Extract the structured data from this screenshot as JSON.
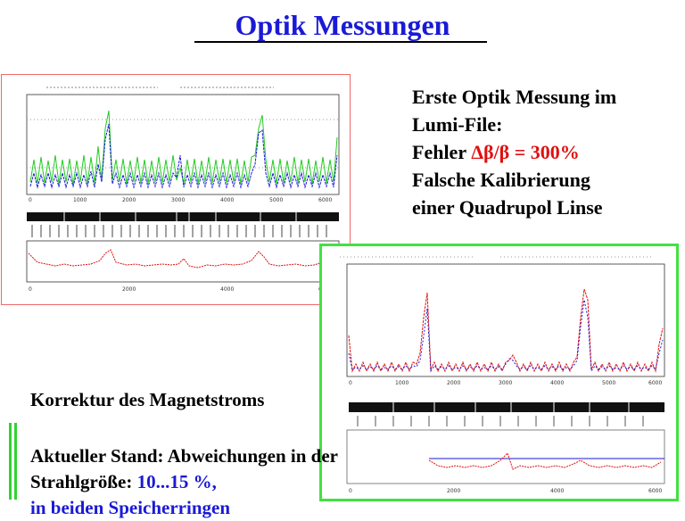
{
  "title": "Optik Messungen",
  "notes": {
    "line1": "Erste Optik Messung im",
    "line2": "Lumi-File:",
    "line3_prefix": "Fehler ",
    "line3_value": "Δβ/β = 300%",
    "line4": "Falsche Kalibrierung",
    "line5": "einer Quadrupol Linse"
  },
  "korrektur": "Korrektur des Magnetstroms",
  "stand": {
    "line1": "Aktueller Stand:  Abweichungen in der",
    "line2_prefix": "Strahlgröße: ",
    "line2_value": "10...15 %,",
    "line3": "in beiden Speicherringen"
  },
  "colors": {
    "title": "#1a1ad6",
    "error_text": "#e01010",
    "plot1_border": "#f06a6a",
    "plot2_border": "#44e044",
    "green_series": "#22cc22",
    "blue_series": "#1a1ad6",
    "red_series": "#e01010"
  }
}
